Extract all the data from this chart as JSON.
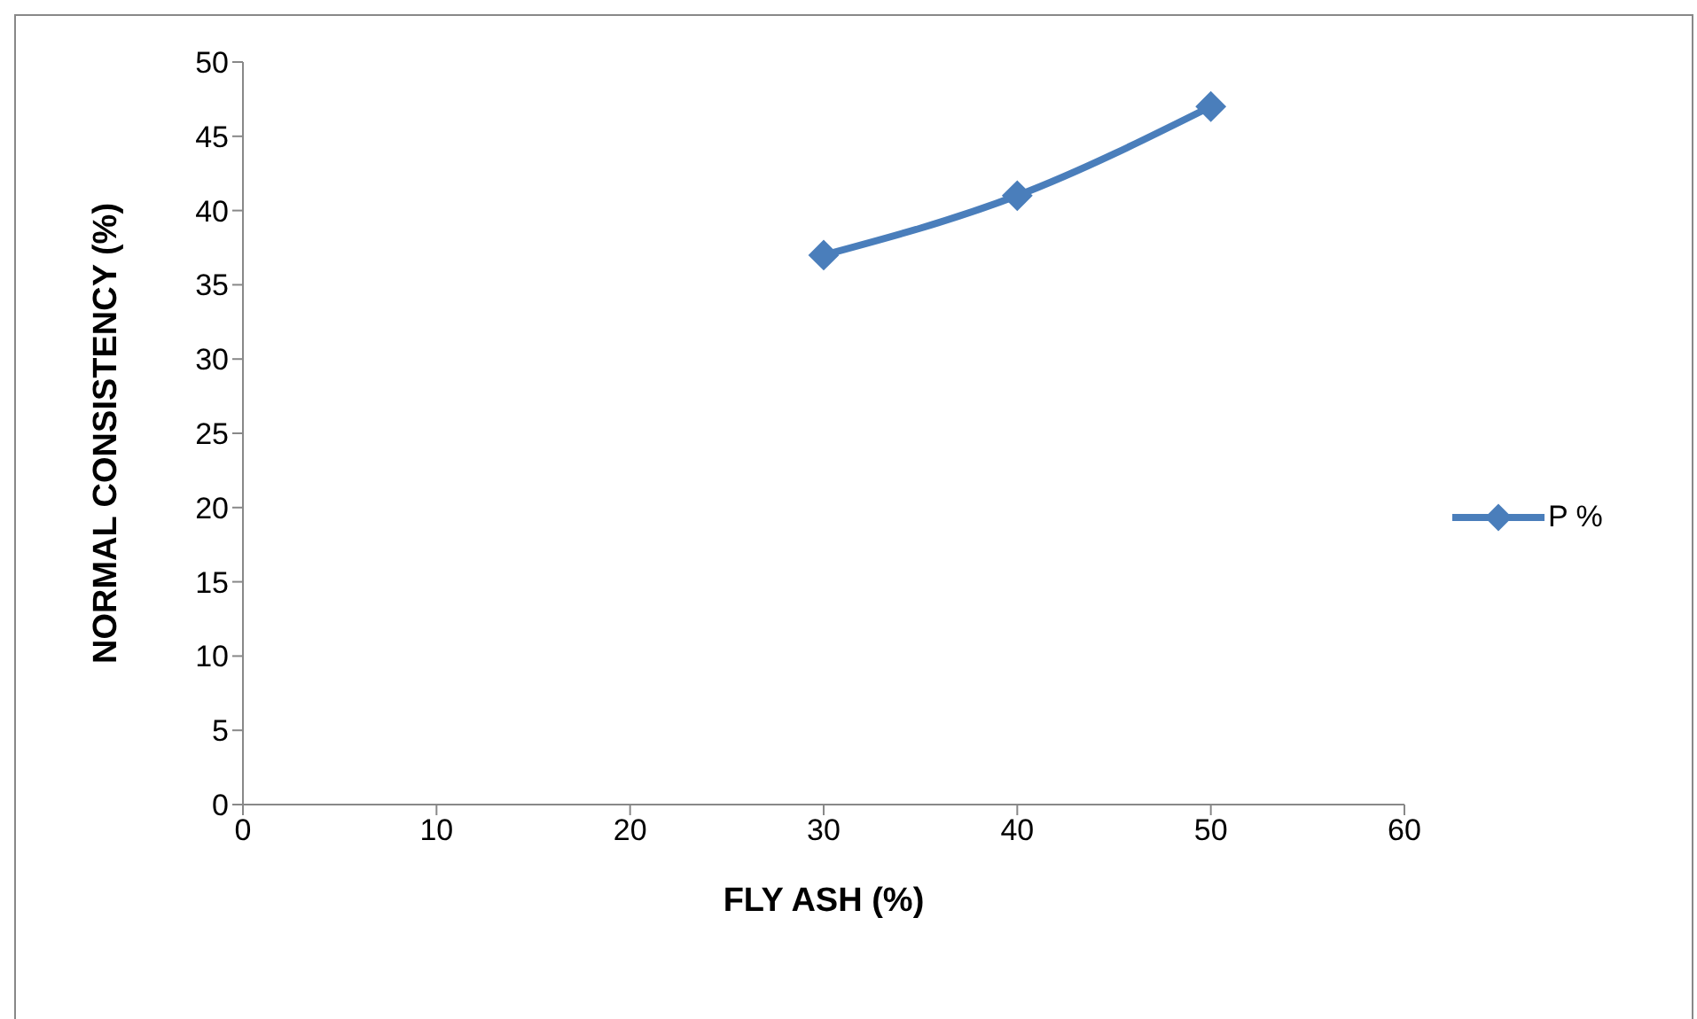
{
  "chart_data": {
    "type": "line",
    "xlabel": "FLY ASH (%)",
    "ylabel": "NORMAL CONSISTENCY (%)",
    "x": [
      30,
      40,
      50
    ],
    "series": [
      {
        "name": "P %",
        "color": "#4a7ebb",
        "values": [
          37,
          41,
          47
        ]
      }
    ],
    "xlim": [
      0,
      60
    ],
    "xticks": [
      0,
      10,
      20,
      30,
      40,
      50,
      60
    ],
    "ylim": [
      0,
      50
    ],
    "yticks": [
      0,
      5,
      10,
      15,
      20,
      25,
      30,
      35,
      40,
      45,
      50
    ],
    "grid": false,
    "legend": "right",
    "marker": "diamond",
    "line_style": "solid"
  }
}
